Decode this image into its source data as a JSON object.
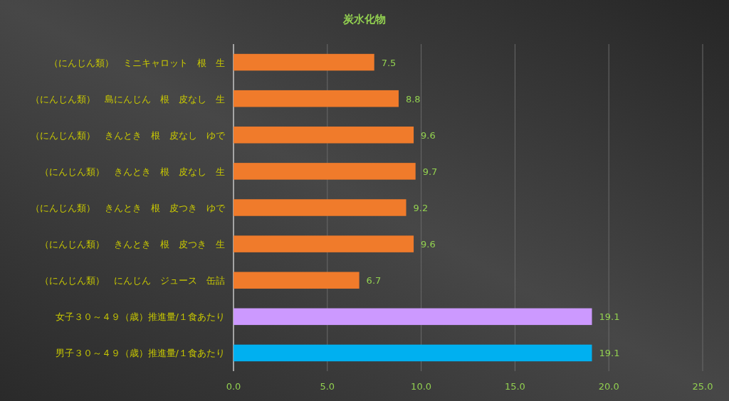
{
  "chart_data": {
    "type": "bar",
    "orientation": "horizontal",
    "title": "炭水化物",
    "categories": [
      "（にんじん類）　ミニキャロット　根　生",
      "（にんじん類）　島にんじん　根　皮なし　生",
      "（にんじん類）　きんとき　根　皮なし　ゆで",
      "（にんじん類）　きんとき　根　皮なし　生",
      "（にんじん類）　きんとき　根　皮つき　ゆで",
      "（にんじん類）　きんとき　根　皮つき　生",
      "（にんじん類）　にんじん　ジュース　缶詰",
      "女子３０～４９（歳）推進量/１食あたり",
      "男子３０～４９（歳）推進量/１食あたり"
    ],
    "values": [
      7.5,
      8.8,
      9.6,
      9.7,
      9.2,
      9.6,
      6.7,
      19.1,
      19.1
    ],
    "colors": [
      "#f07b2b",
      "#f07b2b",
      "#f07b2b",
      "#f07b2b",
      "#f07b2b",
      "#f07b2b",
      "#f07b2b",
      "#cc99ff",
      "#00b0f0"
    ],
    "xlim": [
      0,
      25
    ],
    "xticks": [
      {
        "value": 0,
        "label": "0.0"
      },
      {
        "value": 5,
        "label": "5.0"
      },
      {
        "value": 10,
        "label": "10.0"
      },
      {
        "value": 15,
        "label": "15.0"
      },
      {
        "value": 20,
        "label": "20.0"
      },
      {
        "value": 25,
        "label": "25.0"
      }
    ],
    "grid": "x",
    "data_labels": true
  }
}
